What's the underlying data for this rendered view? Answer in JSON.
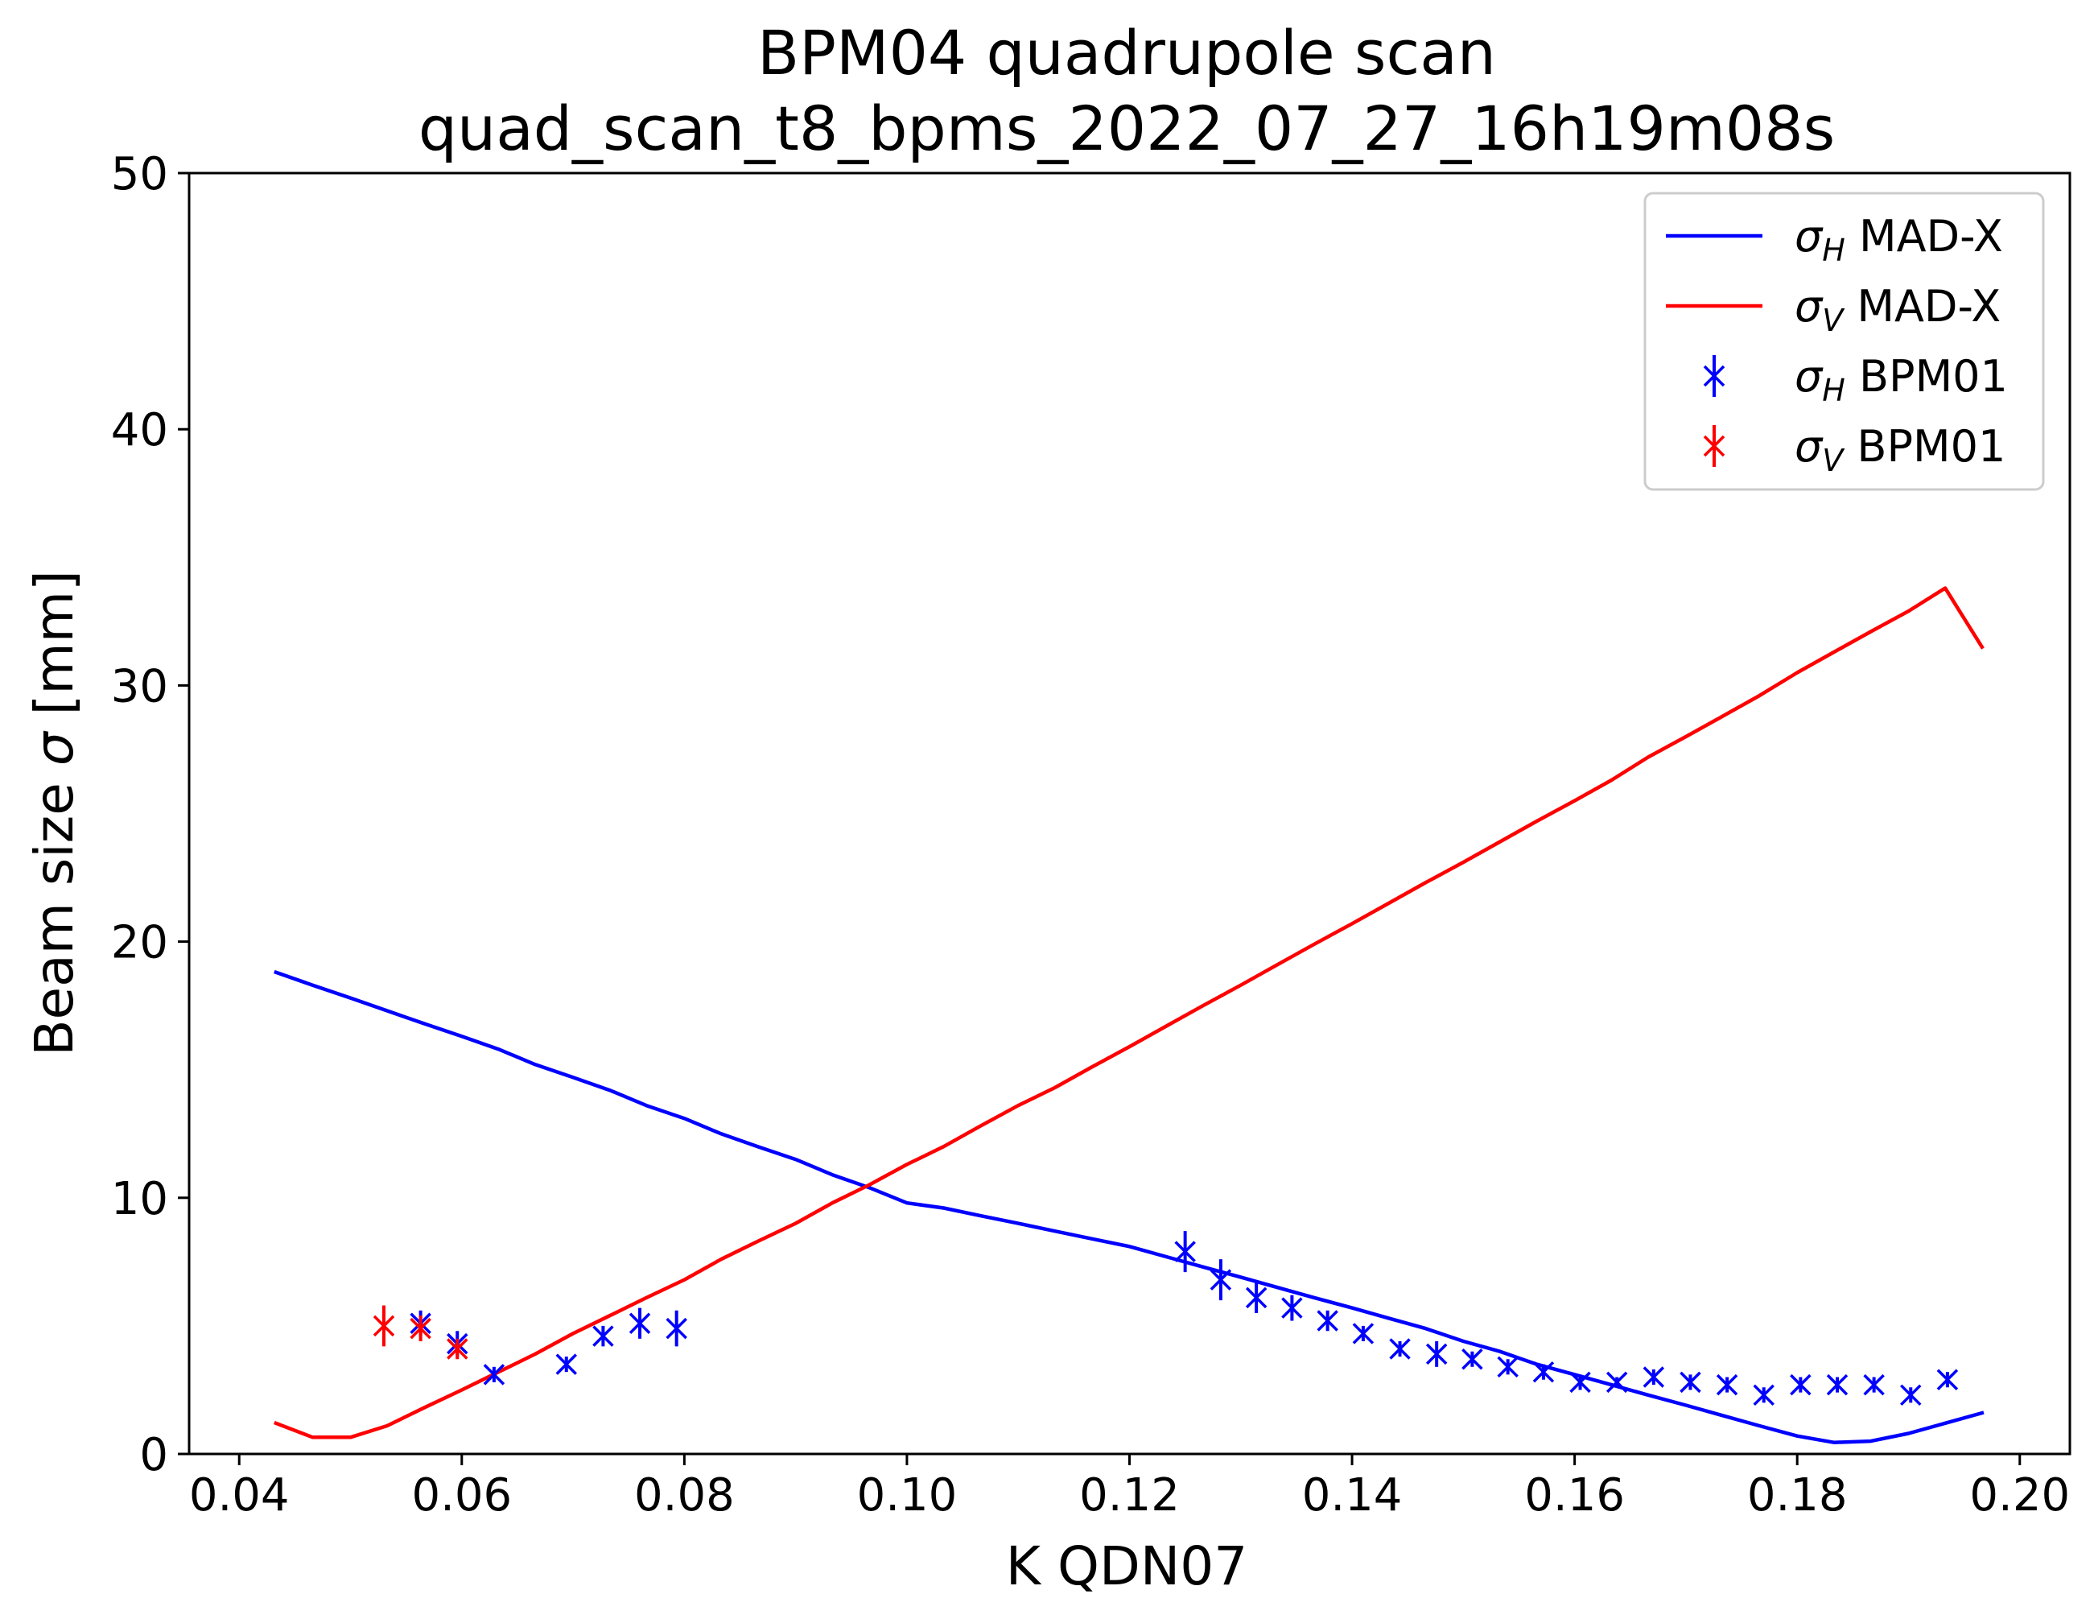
{
  "chart_data": {
    "type": "line",
    "title": "BPM04 quadrupole scan",
    "subtitle": "quad_scan_t8_bpms_2022_07_27_16h19m08s",
    "xlabel": "K QDN07",
    "ylabel_prefix": "Beam size ",
    "ylabel_symbol": "σ",
    "ylabel_unit": " [mm]",
    "xlim": [
      0.0355,
      0.2045
    ],
    "ylim": [
      0,
      50
    ],
    "xticks": [
      0.04,
      0.06,
      0.08,
      0.1,
      0.12,
      0.14,
      0.16,
      0.18,
      0.2
    ],
    "xtick_labels": [
      "0.04",
      "0.06",
      "0.08",
      "0.10",
      "0.12",
      "0.14",
      "0.16",
      "0.18",
      "0.20"
    ],
    "yticks": [
      0,
      10,
      20,
      30,
      40,
      50
    ],
    "ytick_labels": [
      "0",
      "10",
      "20",
      "30",
      "40",
      "50"
    ],
    "grid": false,
    "legend_position": "top-right",
    "colors": {
      "horizontal": "#0000ff",
      "vertical": "#ff0000",
      "axes": "#000000"
    },
    "series": [
      {
        "name": "MAD-X",
        "symbol": "σ",
        "subscript": "H",
        "kind": "line",
        "color": "#0000ff",
        "x": [
          0.0433,
          0.0466,
          0.05,
          0.0533,
          0.0566,
          0.06,
          0.0633,
          0.0666,
          0.07,
          0.0733,
          0.0766,
          0.08,
          0.0833,
          0.0866,
          0.09,
          0.0933,
          0.0966,
          0.1,
          0.1033,
          0.1066,
          0.11,
          0.1133,
          0.1166,
          0.12,
          0.1233,
          0.1266,
          0.13,
          0.1333,
          0.1366,
          0.14,
          0.1433,
          0.1466,
          0.15,
          0.1533,
          0.1566,
          0.16,
          0.1633,
          0.1666,
          0.17,
          0.1733,
          0.1766,
          0.18,
          0.1833,
          0.1866,
          0.19,
          0.1933,
          0.1966
        ],
        "y": [
          18.8,
          18.3,
          17.8,
          17.3,
          16.8,
          16.3,
          15.8,
          15.2,
          14.7,
          14.2,
          13.6,
          13.1,
          12.5,
          12.0,
          11.5,
          10.9,
          10.4,
          9.8,
          9.6,
          9.3,
          9.0,
          8.7,
          8.4,
          8.1,
          7.7,
          7.3,
          6.9,
          6.5,
          6.1,
          5.7,
          5.3,
          4.9,
          4.4,
          4.0,
          3.5,
          3.1,
          2.7,
          2.3,
          1.9,
          1.5,
          1.1,
          0.7,
          0.45,
          0.5,
          0.8,
          1.2,
          1.6
        ]
      },
      {
        "name": "MAD-X",
        "symbol": "σ",
        "subscript": "V",
        "kind": "line",
        "color": "#ff0000",
        "x": [
          0.0433,
          0.0466,
          0.05,
          0.0533,
          0.0566,
          0.06,
          0.0633,
          0.0666,
          0.07,
          0.0733,
          0.0766,
          0.08,
          0.0833,
          0.0866,
          0.09,
          0.0933,
          0.0966,
          0.1,
          0.1033,
          0.1066,
          0.11,
          0.1133,
          0.1166,
          0.12,
          0.1233,
          0.1266,
          0.13,
          0.1333,
          0.1366,
          0.14,
          0.1433,
          0.1466,
          0.15,
          0.1533,
          0.1566,
          0.16,
          0.1633,
          0.1666,
          0.17,
          0.1733,
          0.1766,
          0.18,
          0.1833,
          0.1866,
          0.19,
          0.1933,
          0.1966
        ],
        "y": [
          1.2,
          0.65,
          0.65,
          1.1,
          1.8,
          2.5,
          3.2,
          3.9,
          4.7,
          5.4,
          6.1,
          6.8,
          7.6,
          8.3,
          9.0,
          9.8,
          10.5,
          11.3,
          12.0,
          12.8,
          13.6,
          14.3,
          15.1,
          15.9,
          16.7,
          17.5,
          18.3,
          19.1,
          19.9,
          20.7,
          21.5,
          22.3,
          23.1,
          23.9,
          24.7,
          25.5,
          26.3,
          27.2,
          28.0,
          28.8,
          29.6,
          30.5,
          31.3,
          32.1,
          32.9,
          33.8,
          31.5
        ]
      },
      {
        "name": "BPM01",
        "symbol": "σ",
        "subscript": "H",
        "kind": "errorbar",
        "color": "#0000ff",
        "x": [
          0.0563,
          0.0596,
          0.0629,
          0.0694,
          0.0727,
          0.076,
          0.0793,
          0.125,
          0.1282,
          0.1314,
          0.1346,
          0.1378,
          0.141,
          0.1443,
          0.1476,
          0.1508,
          0.154,
          0.1572,
          0.1605,
          0.1638,
          0.1671,
          0.1704,
          0.1737,
          0.177,
          0.1803,
          0.1836,
          0.1869,
          0.1902,
          0.1935
        ],
        "y": [
          5.1,
          4.3,
          3.1,
          3.5,
          4.6,
          5.1,
          4.9,
          7.9,
          6.8,
          6.1,
          5.7,
          5.2,
          4.7,
          4.1,
          3.9,
          3.7,
          3.4,
          3.2,
          2.8,
          2.8,
          3.0,
          2.8,
          2.7,
          2.3,
          2.7,
          2.7,
          2.7,
          2.3,
          2.9
        ],
        "yerr": [
          0.5,
          0.5,
          0.3,
          0.3,
          0.4,
          0.6,
          0.7,
          0.8,
          0.8,
          0.6,
          0.5,
          0.4,
          0.3,
          0.3,
          0.5,
          0.3,
          0.3,
          0.3,
          0.3,
          0.2,
          0.3,
          0.3,
          0.3,
          0.3,
          0.3,
          0.3,
          0.3,
          0.3,
          0.3
        ]
      },
      {
        "name": "BPM01",
        "symbol": "σ",
        "subscript": "V",
        "kind": "errorbar",
        "color": "#ff0000",
        "x": [
          0.053,
          0.0563,
          0.0596
        ],
        "y": [
          5.0,
          4.9,
          4.1
        ],
        "yerr": [
          0.8,
          0.5,
          0.4
        ]
      }
    ]
  }
}
